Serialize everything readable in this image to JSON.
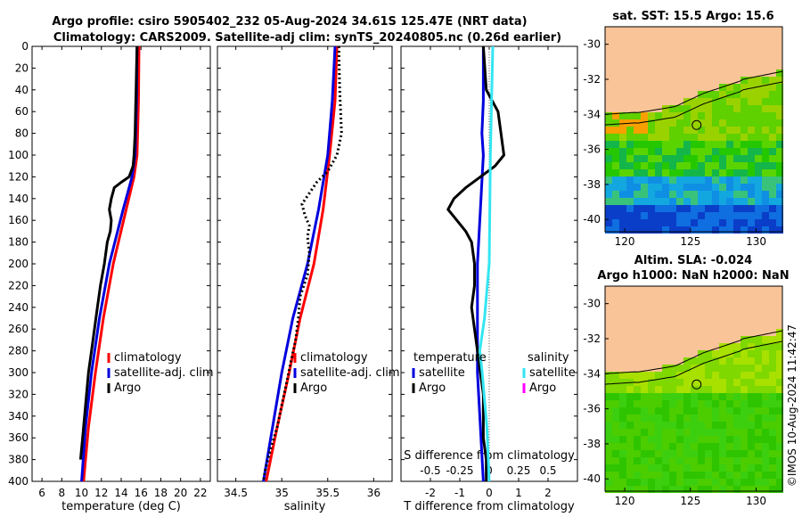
{
  "title": {
    "line1": "Argo profile: csiro 5905402_232 05-Aug-2024 34.61S 125.47E (NRT data)",
    "line2": "Climatology: CARS2009. Satellite-adj clim: synTS_20240805.nc (0.26d earlier)"
  },
  "timestamp": "©IMOS 10-Aug-2024 11:42:47",
  "colors": {
    "clim": "#ff0000",
    "sat": "#0000dd",
    "argo": "#000000",
    "sal_sat": "#33e6f2",
    "sal_argo": "#ff00ff"
  },
  "chart_data": [
    {
      "type": "line",
      "title": "",
      "xlabel": "temperature (deg C)",
      "ylabel": "",
      "xlim": [
        5,
        23
      ],
      "ylim": [
        400,
        0
      ],
      "xticks": [
        "6",
        "8",
        "10",
        "12",
        "14",
        "16",
        "18",
        "20",
        "22"
      ],
      "yticks": [
        "0",
        "20",
        "40",
        "60",
        "80",
        "100",
        "120",
        "140",
        "160",
        "180",
        "200",
        "220",
        "240",
        "260",
        "280",
        "300",
        "320",
        "340",
        "360",
        "380",
        "400"
      ],
      "legend": [
        "climatology",
        "satellite-adj. clim",
        "Argo"
      ],
      "series": [
        {
          "name": "climatology",
          "style": "solid",
          "depth": [
            0,
            50,
            100,
            120,
            150,
            200,
            250,
            300,
            350,
            400
          ],
          "values": [
            15.8,
            15.75,
            15.6,
            15.3,
            14.5,
            13.2,
            12.2,
            11.4,
            10.7,
            10.2
          ]
        },
        {
          "name": "satellite-adj. clim",
          "style": "solid",
          "depth": [
            0,
            50,
            100,
            120,
            150,
            200,
            250,
            300,
            350,
            400
          ],
          "values": [
            15.6,
            15.55,
            15.4,
            15.1,
            14.2,
            12.8,
            11.8,
            11.0,
            10.4,
            10.0
          ]
        },
        {
          "name": "Argo",
          "style": "solid",
          "depth": [
            0,
            20,
            40,
            60,
            80,
            100,
            110,
            120,
            125,
            130,
            140,
            150,
            160,
            170,
            180,
            200,
            220,
            240,
            260,
            280,
            300,
            320,
            340,
            360,
            380
          ],
          "values": [
            15.6,
            15.55,
            15.5,
            15.45,
            15.4,
            15.3,
            15.2,
            14.8,
            14.0,
            13.3,
            13.0,
            12.8,
            13.0,
            12.9,
            12.6,
            12.3,
            11.9,
            11.6,
            11.3,
            11.0,
            10.7,
            10.5,
            10.3,
            10.1,
            9.9
          ]
        }
      ]
    },
    {
      "type": "line",
      "title": "",
      "xlabel": "salinity",
      "ylabel": "",
      "xlim": [
        34.3,
        36.2
      ],
      "ylim": [
        400,
        0
      ],
      "xticks": [
        "34.5",
        "35",
        "35.5",
        "36"
      ],
      "legend": [
        "climatology",
        "satellite-adj. clim",
        "Argo"
      ],
      "series": [
        {
          "name": "climatology",
          "style": "solid",
          "depth": [
            0,
            50,
            100,
            150,
            200,
            250,
            300,
            350,
            400
          ],
          "values": [
            35.6,
            35.58,
            35.52,
            35.45,
            35.35,
            35.2,
            35.08,
            34.95,
            34.83
          ]
        },
        {
          "name": "satellite-adj. clim",
          "style": "solid",
          "depth": [
            0,
            50,
            100,
            150,
            200,
            250,
            300,
            350,
            400
          ],
          "values": [
            35.58,
            35.55,
            35.5,
            35.4,
            35.28,
            35.12,
            35.0,
            34.9,
            34.8
          ]
        },
        {
          "name": "Argo",
          "style": "dotted",
          "depth": [
            0,
            40,
            80,
            100,
            115,
            125,
            135,
            145,
            155,
            165,
            175,
            190,
            210,
            230,
            250,
            270,
            290,
            310,
            330,
            350,
            370,
            390,
            400
          ],
          "values": [
            35.62,
            35.63,
            35.65,
            35.6,
            35.5,
            35.38,
            35.3,
            35.22,
            35.25,
            35.3,
            35.28,
            35.3,
            35.28,
            35.2,
            35.18,
            35.15,
            35.1,
            35.05,
            35.0,
            34.95,
            34.88,
            34.82,
            34.8
          ]
        }
      ]
    },
    {
      "type": "line",
      "title": "",
      "xlabel": "T difference from climatology",
      "ylabel": "",
      "xlim": [
        -3,
        3
      ],
      "ylim": [
        400,
        0
      ],
      "xticks": [
        "-2",
        "-1",
        "0",
        "1",
        "2"
      ],
      "top_axis_label": "S difference from climatology",
      "top_xticks": [
        "-0.5",
        "-0.25",
        "0",
        "0.25",
        "0.5"
      ],
      "legend_left": [
        "temperature",
        "satellite",
        "Argo"
      ],
      "legend_right": [
        "salinity",
        "satellite",
        "Argo"
      ],
      "series": [
        {
          "name": "temperature satellite",
          "style": "solid",
          "depth": [
            0,
            50,
            80,
            100,
            150,
            200,
            250,
            300,
            350,
            400
          ],
          "values": [
            -0.2,
            -0.2,
            -0.25,
            -0.2,
            -0.3,
            -0.4,
            -0.4,
            -0.4,
            -0.3,
            -0.2
          ]
        },
        {
          "name": "temperature Argo",
          "style": "solid",
          "depth": [
            0,
            40,
            60,
            80,
            100,
            110,
            120,
            130,
            140,
            150,
            160,
            170,
            180,
            200,
            220,
            240,
            260,
            280,
            300,
            320,
            340,
            360,
            380,
            400
          ],
          "values": [
            -0.2,
            -0.1,
            0.3,
            0.4,
            0.5,
            0.2,
            -0.3,
            -0.8,
            -1.2,
            -1.4,
            -1.1,
            -0.8,
            -0.6,
            -0.5,
            -0.5,
            -0.6,
            -0.5,
            -0.4,
            -0.3,
            -0.2,
            -0.2,
            -0.2,
            -0.1,
            -0.1
          ]
        },
        {
          "name": "salinity satellite",
          "style": "solid",
          "depth": [
            0,
            100,
            200,
            250,
            280,
            300,
            350,
            400
          ],
          "values": [
            0.03,
            0.01,
            0.0,
            -0.04,
            -0.08,
            -0.06,
            -0.02,
            0.0
          ]
        }
      ]
    }
  ],
  "maps": [
    {
      "title": "sat. SST: 15.5  Argo: 15.6",
      "yticks": [
        "-30",
        "-32",
        "-34",
        "-36",
        "-38",
        "-40"
      ],
      "xticks": [
        "120",
        "125",
        "130"
      ]
    },
    {
      "title1": "Altim. SLA: -0.024",
      "title2": "Argo h1000: NaN h2000: NaN",
      "yticks": [
        "-30",
        "-32",
        "-34",
        "-36",
        "-38",
        "-40"
      ],
      "xticks": [
        "120",
        "125",
        "130"
      ]
    }
  ]
}
